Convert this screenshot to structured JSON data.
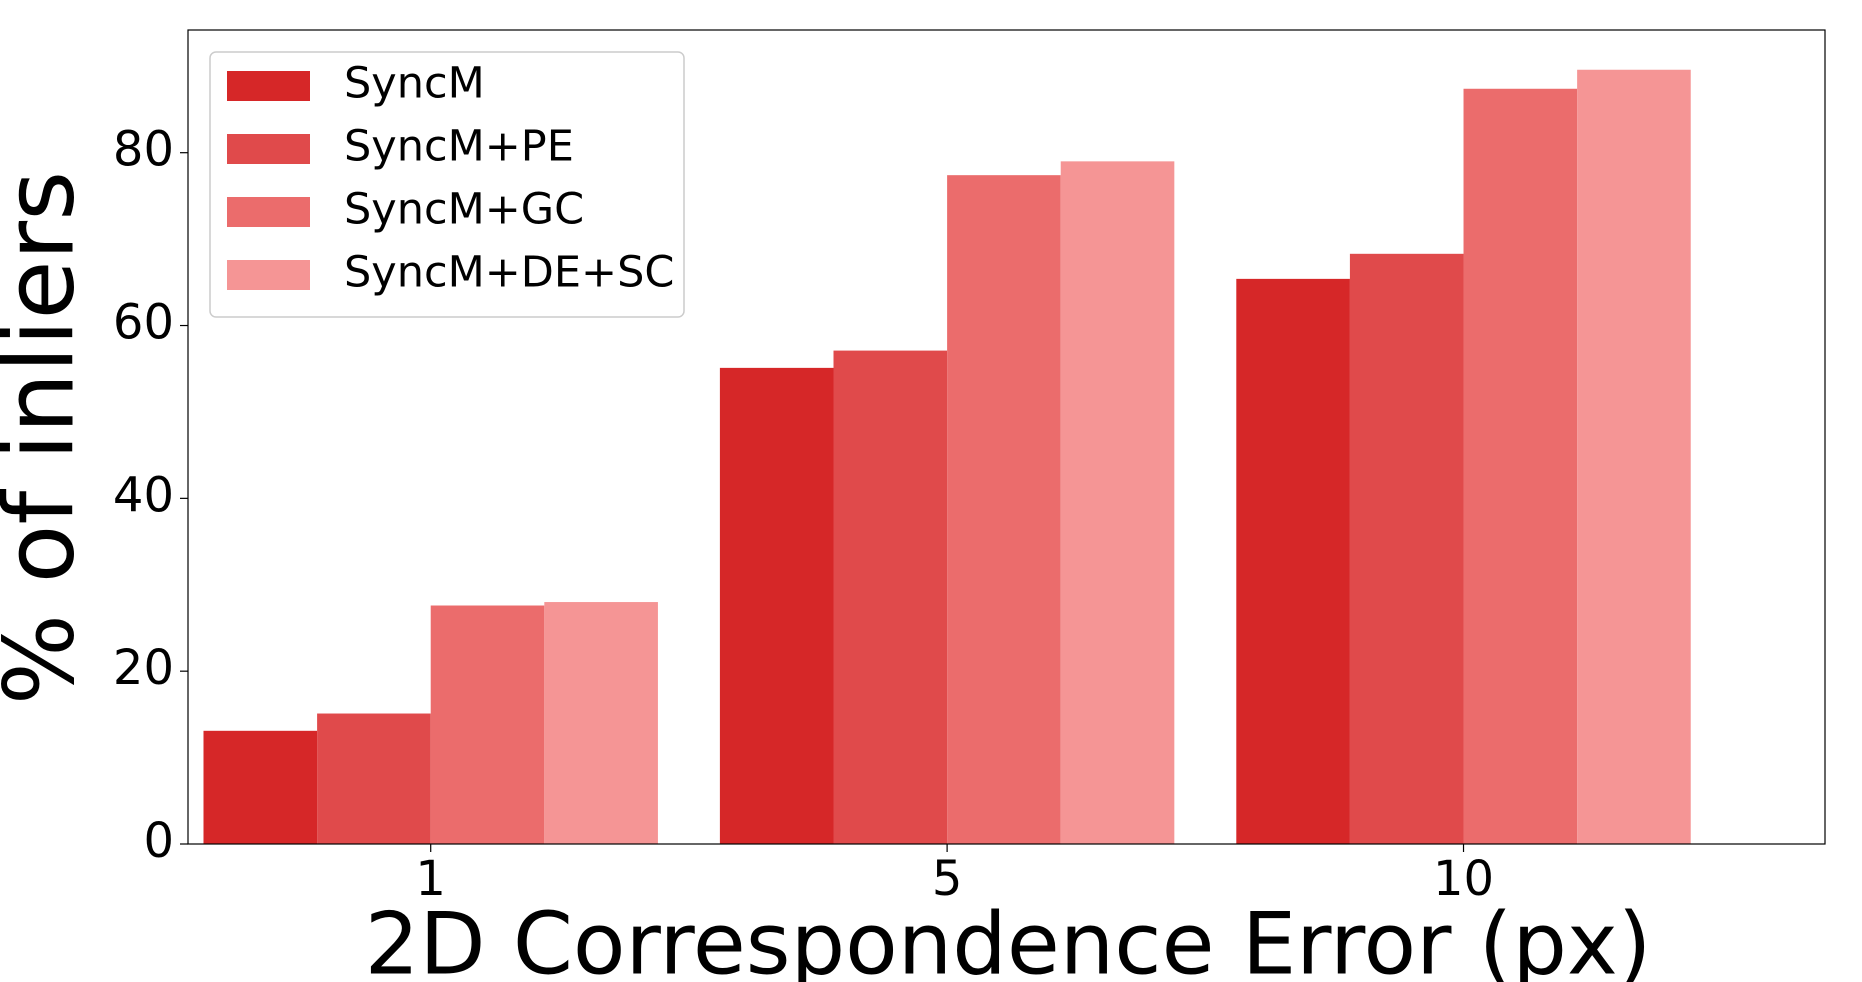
{
  "chart_data": {
    "type": "bar",
    "x_label": "2D Correspondence Error (px)",
    "y_label": "% of inliers",
    "categories": [
      "1",
      "5",
      "10"
    ],
    "series": [
      {
        "name": "SyncM",
        "color": "#d62728",
        "values": [
          13.1,
          55.1,
          65.4
        ]
      },
      {
        "name": "SyncM+PE",
        "color": "#e04a4b",
        "values": [
          15.1,
          57.1,
          68.3
        ]
      },
      {
        "name": "SyncM+GC",
        "color": "#eb6c6c",
        "values": [
          27.6,
          77.4,
          87.4
        ]
      },
      {
        "name": "SyncM+DE+SC",
        "color": "#f59595",
        "values": [
          28.0,
          79.0,
          89.6
        ]
      }
    ],
    "ylim": [
      0,
      94.2
    ],
    "yticks": [
      0,
      20,
      40,
      60,
      80
    ],
    "legend": "upper-left"
  }
}
